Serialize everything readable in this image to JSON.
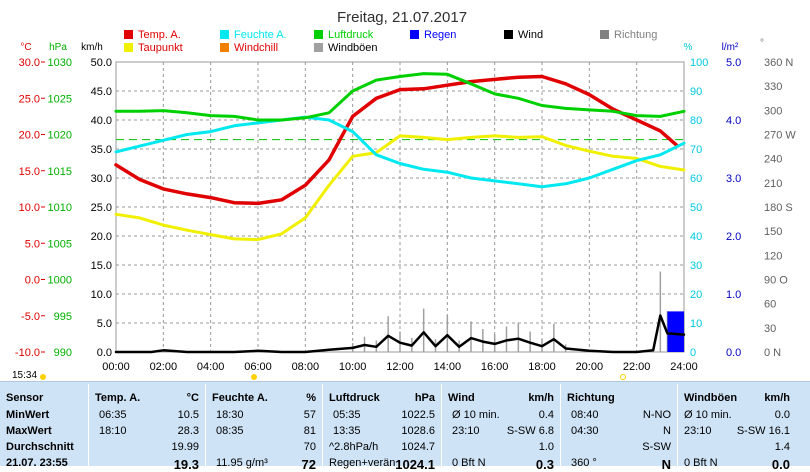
{
  "chart_data": {
    "type": "line",
    "title": "Freitag, 21.07.2017",
    "x_ticks": [
      "00:00",
      "02:00",
      "04:00",
      "06:00",
      "08:00",
      "10:00",
      "12:00",
      "14:00",
      "16:00",
      "18:00",
      "20:00",
      "22:00",
      "24:00"
    ],
    "x_range_hours": [
      0,
      24
    ],
    "axes": {
      "temp_c": {
        "unit": "°C",
        "ticks": [
          "30.0",
          "25.0",
          "20.0",
          "15.0",
          "10.0",
          "5.0",
          "0.0",
          "-5.0",
          "-10.0"
        ],
        "range": [
          -10,
          30
        ],
        "color": "#e00000"
      },
      "pressure_hpa": {
        "unit": "hPa",
        "ticks": [
          "1030",
          "1025",
          "1020",
          "1015",
          "1010",
          "1005",
          "1000",
          "995",
          "990"
        ],
        "range": [
          990,
          1030
        ],
        "color": "#00b000"
      },
      "wind_kmh": {
        "unit": "km/h",
        "ticks": [
          "50.0",
          "45.0",
          "40.0",
          "35.0",
          "30.0",
          "25.0",
          "20.0",
          "15.0",
          "10.0",
          "5.0",
          "0.0"
        ],
        "range": [
          0,
          50
        ],
        "color": "#000000"
      },
      "humidity_pct": {
        "unit": "%",
        "ticks": [
          "100",
          "90",
          "80",
          "70",
          "60",
          "50",
          "40",
          "30",
          "20",
          "10",
          "0"
        ],
        "range": [
          0,
          100
        ],
        "color": "#00c8e0"
      },
      "rain_lm2": {
        "unit": "l/m²",
        "ticks": [
          "5.0",
          "4.0",
          "3.0",
          "2.0",
          "1.0",
          "0.0"
        ],
        "range": [
          0,
          5
        ],
        "color": "#0000c0"
      },
      "direction_deg": {
        "unit": "°",
        "ticks": [
          "360 N",
          "330",
          "300",
          "270 W",
          "240",
          "210",
          "180 S",
          "150",
          "120",
          "90 O",
          "60",
          "30",
          "0 N"
        ],
        "range": [
          0,
          360
        ],
        "color": "#707070"
      }
    },
    "legend": [
      {
        "label": "Temp. A.",
        "color": "#e00000"
      },
      {
        "label": "Taupunkt",
        "color": "#f0f000"
      },
      {
        "label": "Feuchte A.",
        "color": "#00e8f0"
      },
      {
        "label": "Windchill",
        "color": "#f08000"
      },
      {
        "label": "Luftdruck",
        "color": "#00d000"
      },
      {
        "label": "Windböen",
        "color": "#a0a0a0"
      },
      {
        "label": "Regen",
        "color": "#0000ff"
      },
      {
        "label": "Wind",
        "color": "#000000"
      },
      {
        "label": "Richtung",
        "color": "#808080"
      }
    ],
    "series": [
      {
        "name": "Temp. A.",
        "axis": "temp_c",
        "x": [
          0,
          1,
          2,
          3,
          4,
          5,
          6,
          7,
          8,
          9,
          9.5,
          10,
          11,
          12,
          13,
          14,
          15,
          16,
          17,
          18,
          19,
          20,
          21,
          22,
          23,
          23.7
        ],
        "y": [
          15.8,
          13.8,
          12.5,
          11.8,
          11.3,
          10.6,
          10.5,
          11.0,
          13.0,
          16.5,
          19.5,
          22.5,
          25.0,
          26.2,
          26.3,
          26.8,
          27.3,
          27.6,
          27.9,
          28.0,
          27.0,
          25.5,
          23.5,
          22.0,
          20.5,
          18.5
        ]
      },
      {
        "name": "Taupunkt",
        "axis": "temp_c",
        "x": [
          0,
          1,
          2,
          3,
          4,
          5,
          6,
          7,
          8,
          9,
          10,
          11,
          12,
          13,
          14,
          15,
          16,
          17,
          18,
          19,
          20,
          21,
          22,
          23,
          24
        ],
        "y": [
          9.0,
          8.5,
          7.5,
          6.8,
          6.2,
          5.6,
          5.5,
          6.3,
          8.5,
          13.0,
          17.0,
          17.5,
          19.8,
          19.6,
          19.3,
          19.6,
          19.8,
          19.6,
          19.7,
          18.5,
          17.7,
          17.0,
          16.7,
          15.6,
          15.1
        ]
      },
      {
        "name": "Feuchte A.",
        "axis": "humidity_pct",
        "x": [
          0,
          1,
          2,
          3,
          4,
          5,
          6,
          7,
          8,
          9,
          10,
          11,
          12,
          13,
          14,
          15,
          16,
          17,
          18,
          19,
          20,
          21,
          22,
          23,
          24
        ],
        "y": [
          69,
          71,
          73,
          75,
          76,
          78,
          79,
          80,
          81,
          80,
          76,
          68,
          65,
          63,
          62,
          60,
          59,
          58,
          57,
          58,
          60,
          63,
          66,
          68,
          72
        ]
      },
      {
        "name": "Luftdruck",
        "axis": "pressure_hpa",
        "x": [
          0,
          1,
          2,
          3,
          4,
          5,
          6,
          7,
          8,
          9,
          10,
          11,
          12,
          13,
          14,
          15,
          16,
          17,
          18,
          19,
          20,
          21,
          22,
          23,
          24
        ],
        "y": [
          1023.2,
          1023.2,
          1023.3,
          1023.0,
          1022.6,
          1022.5,
          1022.0,
          1022.0,
          1022.3,
          1023.0,
          1026.0,
          1027.5,
          1028.0,
          1028.4,
          1028.3,
          1027.0,
          1025.6,
          1025.0,
          1024.0,
          1023.6,
          1023.4,
          1023.2,
          1022.6,
          1022.5,
          1023.2
        ]
      },
      {
        "name": "Wind",
        "axis": "wind_kmh",
        "x": [
          0,
          1,
          1.5,
          2,
          3,
          4,
          5,
          6,
          7,
          8,
          9,
          10,
          10.5,
          11,
          11.5,
          12,
          12.5,
          13,
          13.5,
          14,
          14.5,
          15,
          15.5,
          16,
          16.5,
          17,
          17.5,
          18,
          18.5,
          19,
          20,
          21,
          22,
          22.7,
          23,
          23.3,
          24
        ],
        "y": [
          0,
          0,
          0,
          0.3,
          0,
          0,
          0,
          0.2,
          0,
          0,
          0.4,
          0.7,
          1.2,
          0.9,
          2.8,
          1.6,
          1.1,
          3.4,
          1.0,
          2.9,
          0.9,
          2.4,
          1.8,
          1.4,
          2.0,
          2.3,
          1.6,
          1.0,
          2.2,
          0.6,
          0.2,
          0,
          0,
          0.3,
          6.3,
          3.2,
          3.0
        ]
      },
      {
        "name": "Regen",
        "axis": "rain_lm2",
        "x": [
          23.3,
          24
        ],
        "y": [
          0.7,
          0.7
        ]
      }
    ],
    "reference_line": {
      "axis": "temp_c",
      "value": 19.3,
      "color": "#00c000",
      "style": "dashed"
    }
  },
  "timebar": {
    "time": "15:34"
  },
  "table": {
    "sensor": {
      "header": "Sensor",
      "rows": [
        "MinWert",
        "MaxWert",
        "Durchschnitt",
        "21.07. 23:55"
      ]
    },
    "temp": {
      "header": "Temp. A.",
      "unit": "°C",
      "rows": [
        [
          "06:35",
          "10.5"
        ],
        [
          "18:10",
          "28.3"
        ],
        [
          "",
          "19.99"
        ],
        [
          "",
          "19.3"
        ]
      ]
    },
    "humidity": {
      "header": "Feuchte A.",
      "unit": "%",
      "rows": [
        [
          "18:30",
          "57"
        ],
        [
          "08:35",
          "81"
        ],
        [
          "",
          "70"
        ],
        [
          "11.95 g/m³",
          "72"
        ]
      ]
    },
    "pressure": {
      "header": "Luftdruck",
      "unit": "hPa",
      "rows": [
        [
          "05:35",
          "1022.5"
        ],
        [
          "13:35",
          "1028.6"
        ],
        [
          "^2.8hPa/h",
          "1024.7"
        ],
        [
          "Regen+verän",
          "1024.1"
        ]
      ]
    },
    "wind": {
      "header": "Wind",
      "unit": "km/h",
      "rows": [
        [
          "Ø 10 min.",
          "0.4"
        ],
        [
          "23:10",
          "S-SW 6.8"
        ],
        [
          "",
          "1.0"
        ],
        [
          "0 Bft N",
          "0.3"
        ]
      ]
    },
    "direction": {
      "header": "Richtung",
      "unit": "",
      "rows": [
        [
          "08:40",
          "N-NO"
        ],
        [
          "04:30",
          "N"
        ],
        [
          "",
          "S-SW"
        ],
        [
          "360 °",
          "N"
        ]
      ]
    },
    "gusts": {
      "header": "Windböen",
      "unit": "km/h",
      "rows": [
        [
          "Ø 10 min.",
          "0.0"
        ],
        [
          "23:10",
          "S-SW 16.1"
        ],
        [
          "",
          "1.4"
        ],
        [
          "0 Bft N",
          "0.0"
        ]
      ]
    }
  }
}
